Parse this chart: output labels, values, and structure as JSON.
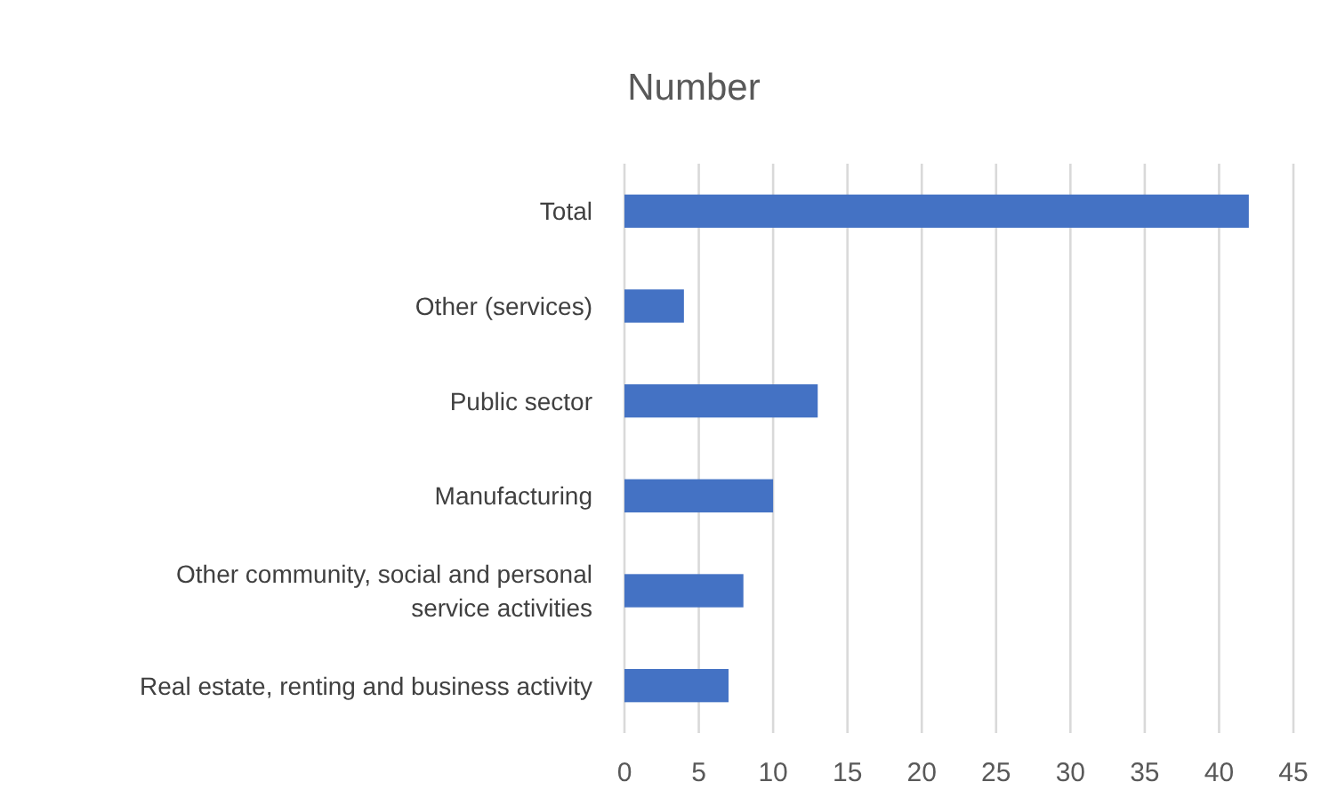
{
  "chart_data": {
    "type": "bar",
    "title": "Number",
    "orientation": "horizontal",
    "categories": [
      "Total",
      "Other (services)",
      "Public sector",
      "Manufacturing",
      "Other community, social and personal service activities",
      "Real estate, renting and business activity"
    ],
    "values": [
      42,
      4,
      13,
      10,
      8,
      7
    ],
    "color": "#4472c4",
    "xlim": [
      0,
      45
    ],
    "xticks": [
      0,
      5,
      10,
      15,
      20,
      25,
      30,
      35,
      40,
      45
    ],
    "grid": "x"
  }
}
